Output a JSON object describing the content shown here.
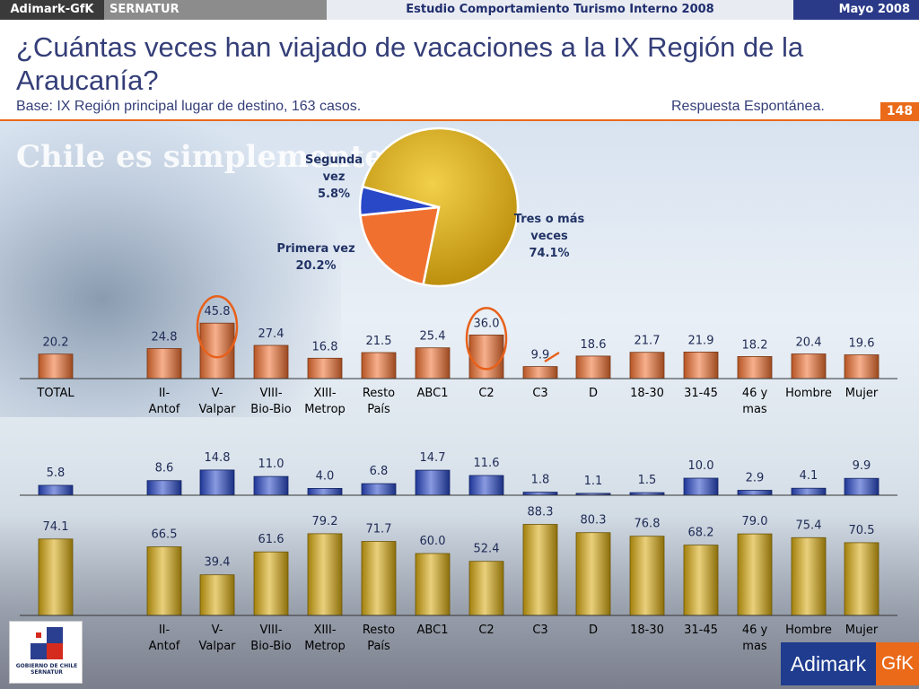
{
  "topbar": {
    "brand": "Adimark-GfK",
    "client": "SERNATUR",
    "study": "Estudio Comportamiento Turismo Interno 2008",
    "date": "Mayo 2008"
  },
  "header": {
    "title": "¿Cuántas veces han viajado de vacaciones a la IX Región de la Araucanía?",
    "base": "Base: IX Región principal lugar de destino, 163 casos.",
    "response_type": "Respuesta Espontánea.",
    "page_number": "148"
  },
  "background": {
    "watermark": "Chile es simplemente"
  },
  "logos": {
    "gobierno": "GOBIERNO DE CHILE",
    "gobierno_sub": "SERNATUR",
    "adimark": "Adimark",
    "gfk": "GfK"
  },
  "colors": {
    "primera_vez": "#f07030",
    "segunda_vez": "#2848c8",
    "tres_o_mas": "#d8aa10",
    "highlight_circle": "#e8601a",
    "value_text": "#1e2a55"
  },
  "chart_data": [
    {
      "type": "pie",
      "slices": [
        {
          "label": "Tres o más veces",
          "value": 74.1,
          "display": "74.1%",
          "label_lines": [
            "Tres o más",
            "veces",
            "74.1%"
          ]
        },
        {
          "label": "Primera vez",
          "value": 20.2,
          "display": "20.2%",
          "label_lines": [
            "Primera vez",
            "20.2%"
          ]
        },
        {
          "label": "Segunda vez",
          "value": 5.8,
          "display": "5.8%",
          "label_lines": [
            "Segunda",
            "vez",
            "5.8%"
          ]
        }
      ]
    },
    {
      "type": "bar",
      "series_name": "Primera vez",
      "color_key": "primera_vez",
      "categories": [
        [
          "TOTAL"
        ],
        [
          "II-",
          "Antof"
        ],
        [
          "V-",
          "Valpar"
        ],
        [
          "VIII-",
          "Bio-Bio"
        ],
        [
          "XIII-",
          "Metrop"
        ],
        [
          "Resto",
          "País"
        ],
        [
          "ABC1"
        ],
        [
          "C2"
        ],
        [
          "C3"
        ],
        [
          "D"
        ],
        [
          "18-30"
        ],
        [
          "31-45"
        ],
        [
          "46 y",
          "mas"
        ],
        [
          "Hombre"
        ],
        [
          "Mujer"
        ]
      ],
      "values": [
        20.2,
        24.8,
        45.8,
        27.4,
        16.8,
        21.5,
        25.4,
        36.0,
        9.9,
        18.6,
        21.7,
        21.9,
        18.2,
        20.4,
        19.6
      ],
      "labels": [
        "20.2",
        "24.8",
        "45.8",
        "27.4",
        "16.8",
        "21.5",
        "25.4",
        "36.0",
        "9.9",
        "18.6",
        "21.7",
        "21.9",
        "18.2",
        "20.4",
        "19.6"
      ],
      "highlighted": [
        "V-Valpar",
        "C2"
      ]
    },
    {
      "type": "bar",
      "series_name": "Segunda vez",
      "color_key": "segunda_vez",
      "values": [
        5.8,
        8.6,
        14.8,
        11.0,
        4.0,
        6.8,
        14.7,
        11.6,
        1.8,
        1.1,
        1.5,
        10.0,
        2.9,
        4.1,
        9.9
      ],
      "labels": [
        "5.8",
        "8.6",
        "14.8",
        "11.0",
        "4.0",
        "6.8",
        "14.7",
        "11.6",
        "1.8",
        "1.1",
        "1.5",
        "10.0",
        "2.9",
        "4.1",
        "9.9"
      ]
    },
    {
      "type": "bar",
      "series_name": "Tres o más veces",
      "color_key": "tres_o_mas",
      "categories": [
        [
          "TOTAL"
        ],
        [
          "II-",
          "Antof"
        ],
        [
          "V-",
          "Valpar"
        ],
        [
          "VIII-",
          "Bio-Bio"
        ],
        [
          "XIII-",
          "Metrop"
        ],
        [
          "Resto",
          "País"
        ],
        [
          "ABC1"
        ],
        [
          "C2"
        ],
        [
          "C3"
        ],
        [
          "D"
        ],
        [
          "18-30"
        ],
        [
          "31-45"
        ],
        [
          "46 y",
          "mas"
        ],
        [
          "Hombre"
        ],
        [
          "Mujer"
        ]
      ],
      "values": [
        74.1,
        66.5,
        39.4,
        61.6,
        79.2,
        71.7,
        60.0,
        52.4,
        88.3,
        80.3,
        76.8,
        68.2,
        79.0,
        75.4,
        70.5
      ],
      "labels": [
        "74.1",
        "66.5",
        "39.4",
        "61.6",
        "79.2",
        "71.7",
        "60.0",
        "52.4",
        "88.3",
        "80.3",
        "76.8",
        "68.2",
        "79.0",
        "75.4",
        "70.5"
      ]
    }
  ]
}
